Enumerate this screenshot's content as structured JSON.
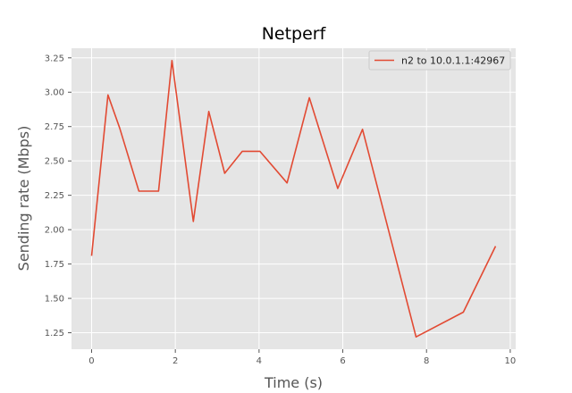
{
  "chart_data": {
    "type": "line",
    "title": "Netperf",
    "xlabel": "Time (s)",
    "ylabel": "Sending rate (Mbps)",
    "xlim": [
      -0.48,
      10.13
    ],
    "ylim": [
      1.13,
      3.32
    ],
    "xticks": [
      0,
      2,
      4,
      6,
      8,
      10
    ],
    "yticks": [
      1.25,
      1.5,
      1.75,
      2.0,
      2.25,
      2.5,
      2.75,
      3.0,
      3.25
    ],
    "xtick_labels": [
      "0",
      "2",
      "4",
      "6",
      "8",
      "10"
    ],
    "ytick_labels": [
      "1.25",
      "1.50",
      "1.75",
      "2.00",
      "2.25",
      "2.50",
      "2.75",
      "3.00",
      "3.25"
    ],
    "grid": true,
    "legend_position": "top-right",
    "series": [
      {
        "name": "n2 to 10.0.1.1:42967",
        "color": "#E24A33",
        "x": [
          0.0,
          0.39,
          0.67,
          1.13,
          1.6,
          1.92,
          2.43,
          2.8,
          3.18,
          3.6,
          4.02,
          4.67,
          5.2,
          5.88,
          6.47,
          7.75,
          8.88,
          9.65
        ],
        "y": [
          1.81,
          2.98,
          2.74,
          2.28,
          2.28,
          3.23,
          2.06,
          2.86,
          2.41,
          2.57,
          2.57,
          2.34,
          2.96,
          2.3,
          2.73,
          1.22,
          1.4,
          1.88
        ]
      }
    ]
  }
}
